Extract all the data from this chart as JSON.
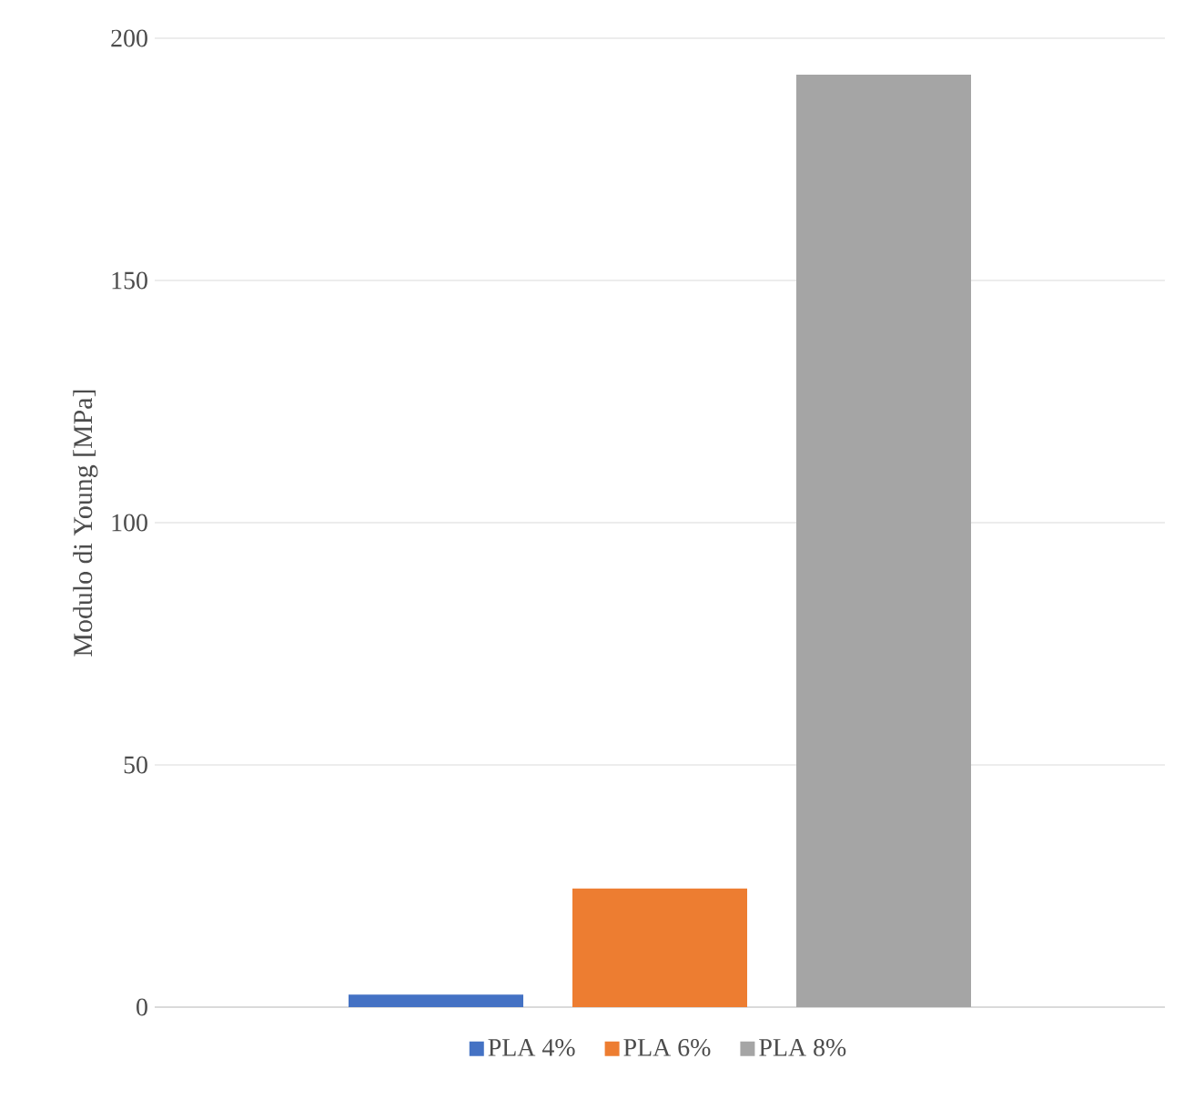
{
  "chart_data": {
    "type": "bar",
    "ylabel": "Modulo di Young [MPa]",
    "categories": [
      null
    ],
    "series": [
      {
        "name": "PLA 4%",
        "color": "#4472c4",
        "values": [
          2.6
        ]
      },
      {
        "name": "PLA 6%",
        "color": "#ed7d31",
        "values": [
          24.5
        ]
      },
      {
        "name": "PLA 8%",
        "color": "#a5a5a5",
        "values": [
          192.5
        ]
      }
    ],
    "ylim": [
      0,
      200
    ],
    "yticks": [
      0,
      50,
      100,
      150,
      200
    ],
    "grid": "y",
    "legend": "bottom",
    "tick_labels": "y"
  }
}
